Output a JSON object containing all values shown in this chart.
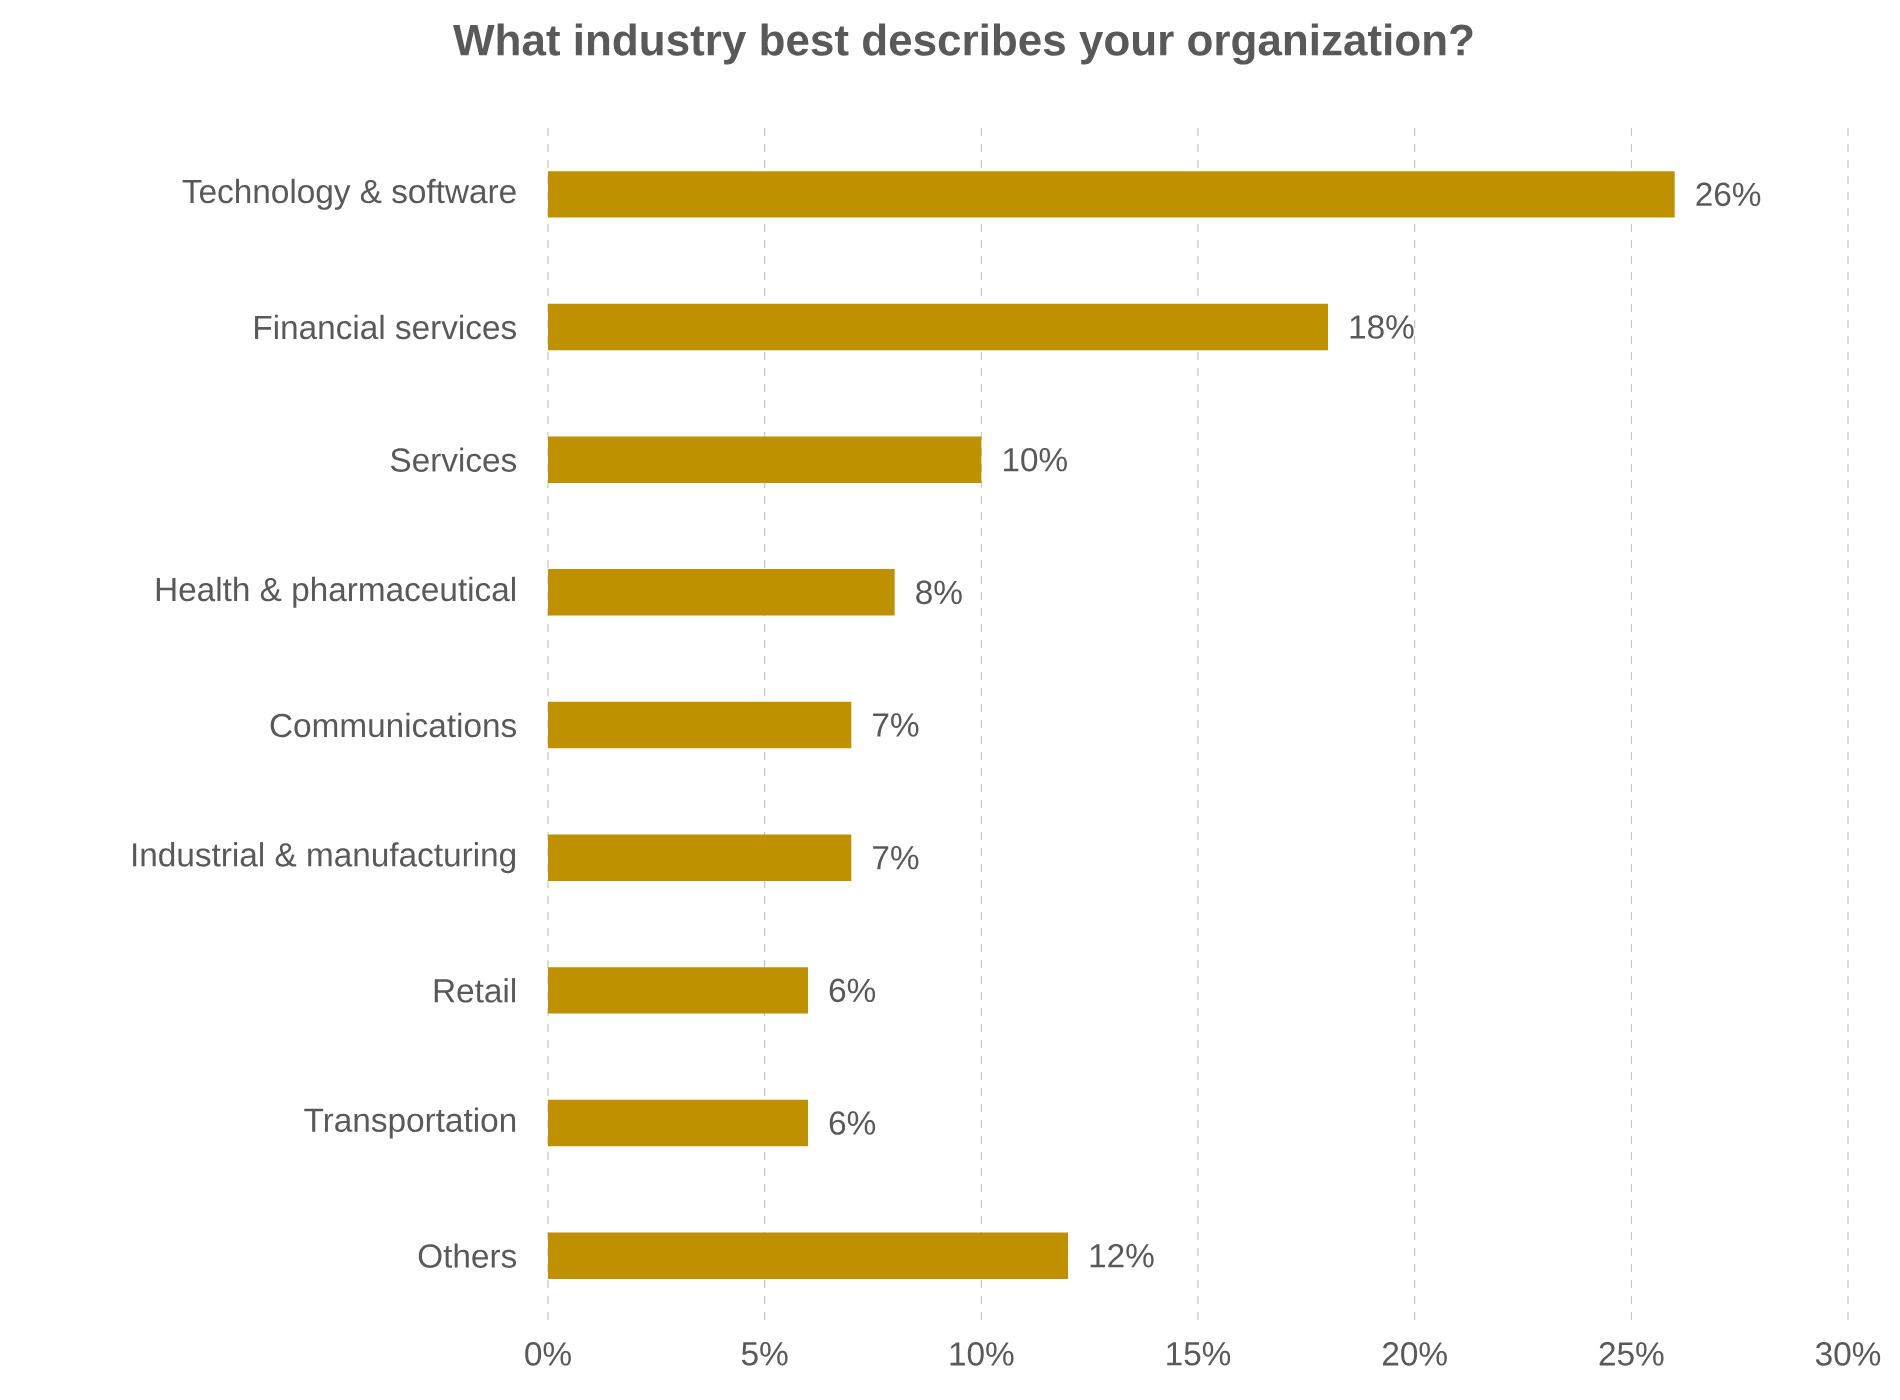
{
  "chart_data": {
    "type": "bar",
    "orientation": "horizontal",
    "title": "What industry best describes your organization?",
    "categories": [
      "Technology & software",
      "Financial services",
      "Services",
      "Health & pharmaceutical",
      "Communications",
      "Industrial & manufacturing",
      "Retail",
      "Transportation",
      "Others"
    ],
    "values": [
      26,
      18,
      10,
      8,
      7,
      7,
      6,
      6,
      12
    ],
    "value_labels": [
      "26%",
      "18%",
      "10%",
      "8%",
      "7%",
      "7%",
      "6%",
      "6%",
      "12%"
    ],
    "color": "#bf9000",
    "xlim": [
      0,
      30
    ],
    "xticks": [
      {
        "value": 0,
        "label": "0%"
      },
      {
        "value": 5,
        "label": "5%"
      },
      {
        "value": 10,
        "label": "10%"
      },
      {
        "value": 15,
        "label": "15%"
      },
      {
        "value": 20,
        "label": "20%"
      },
      {
        "value": 25,
        "label": "25%"
      },
      {
        "value": 30,
        "label": "30%"
      }
    ],
    "grid": "x"
  }
}
